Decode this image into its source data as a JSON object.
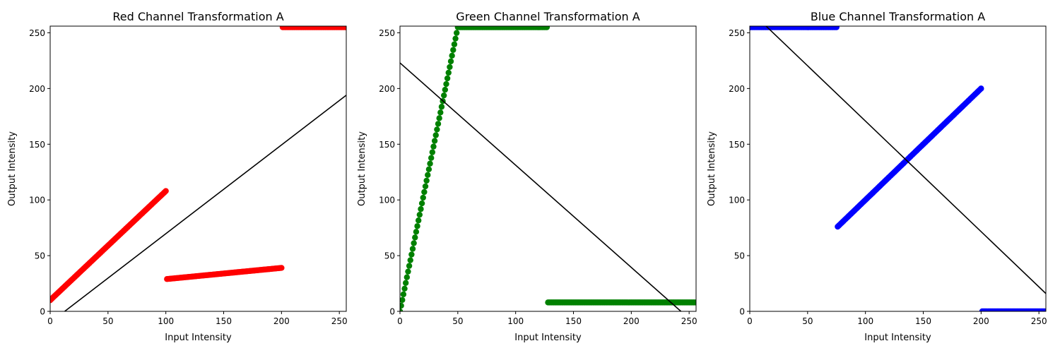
{
  "chart_data": [
    {
      "type": "scatter",
      "title": "Red Channel Transformation A",
      "xlabel": "Input Intensity",
      "ylabel": "Output Intensity",
      "xlim": [
        0,
        256
      ],
      "ylim": [
        0,
        256
      ],
      "xticks": [
        0,
        50,
        100,
        150,
        200,
        250
      ],
      "yticks": [
        0,
        50,
        100,
        150,
        200,
        250
      ],
      "grid": false,
      "color": "#ff0000",
      "scatter_segments": [
        {
          "x_start": 0,
          "x_end": 100,
          "y_start": 10,
          "y_end": 108
        },
        {
          "x_start": 101,
          "x_end": 200,
          "y_start": 29,
          "y_end": 39
        },
        {
          "x_start": 201,
          "x_end": 255,
          "y_start": 255,
          "y_end": 255
        }
      ],
      "fit_line": {
        "color": "#000000",
        "x": [
          0,
          256
        ],
        "y": [
          -10,
          194
        ]
      }
    },
    {
      "type": "scatter",
      "title": "Green Channel Transformation A",
      "xlabel": "Input Intensity",
      "ylabel": "Output Intensity",
      "xlim": [
        0,
        256
      ],
      "ylim": [
        0,
        256
      ],
      "xticks": [
        0,
        50,
        100,
        150,
        200,
        250
      ],
      "yticks": [
        0,
        50,
        100,
        150,
        200,
        250
      ],
      "grid": false,
      "color": "#008000",
      "scatter_segments": [
        {
          "x_start": 0,
          "x_end": 50,
          "y_start": 0,
          "y_end": 255
        },
        {
          "x_start": 51,
          "x_end": 127,
          "y_start": 255,
          "y_end": 255
        },
        {
          "x_start": 128,
          "x_end": 255,
          "y_start": 8,
          "y_end": 8
        }
      ],
      "fit_line": {
        "color": "#000000",
        "x": [
          0,
          256
        ],
        "y": [
          223,
          -12
        ]
      }
    },
    {
      "type": "scatter",
      "title": "Blue Channel Transformation A",
      "xlabel": "Input Intensity",
      "ylabel": "Output Intensity",
      "xlim": [
        0,
        256
      ],
      "ylim": [
        0,
        256
      ],
      "xticks": [
        0,
        50,
        100,
        150,
        200,
        250
      ],
      "yticks": [
        0,
        50,
        100,
        150,
        200,
        250
      ],
      "grid": false,
      "color": "#0000ff",
      "scatter_segments": [
        {
          "x_start": 0,
          "x_end": 75,
          "y_start": 255,
          "y_end": 255
        },
        {
          "x_start": 76,
          "x_end": 200,
          "y_start": 76,
          "y_end": 200
        },
        {
          "x_start": 201,
          "x_end": 255,
          "y_start": 0,
          "y_end": 0
        }
      ],
      "fit_line": {
        "color": "#000000",
        "x": [
          0,
          256
        ],
        "y": [
          270,
          16
        ]
      }
    }
  ]
}
